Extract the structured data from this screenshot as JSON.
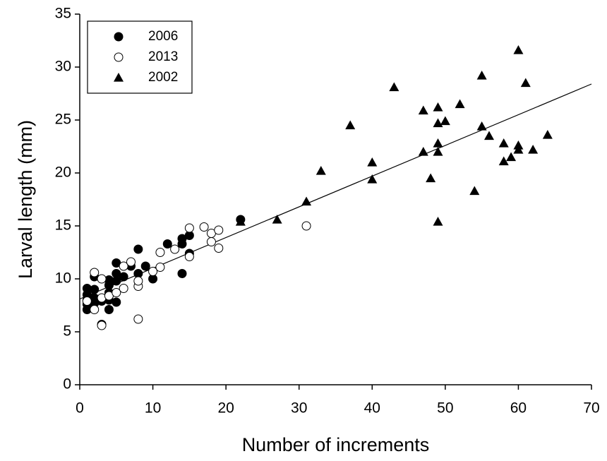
{
  "chart_data": {
    "type": "scatter",
    "x_label": "Number of increments",
    "y_label": "Larval length (mm)",
    "xlim": [
      0,
      70
    ],
    "ylim": [
      0,
      35
    ],
    "xticks": [
      0,
      10,
      20,
      30,
      40,
      50,
      60,
      70
    ],
    "yticks": [
      0,
      5,
      10,
      15,
      20,
      25,
      30,
      35
    ],
    "legend_position": "upper-left",
    "series": [
      {
        "name": "2006",
        "marker": "filled-circle",
        "color": "#000000",
        "x": [
          1,
          1,
          1,
          1,
          1,
          2,
          2,
          2,
          2,
          3,
          3,
          4,
          4,
          4,
          4,
          4,
          5,
          5,
          5,
          5,
          6,
          7,
          8,
          8,
          9,
          10,
          12,
          14,
          14,
          14,
          15,
          15,
          22
        ],
        "values": [
          7.1,
          7.6,
          8.0,
          8.5,
          9.1,
          7.7,
          8.2,
          9.0,
          10.2,
          5.7,
          7.9,
          7.1,
          8.0,
          8.7,
          9.4,
          9.9,
          7.8,
          9.8,
          10.5,
          11.5,
          10.2,
          11.2,
          10.5,
          12.8,
          11.2,
          10.0,
          13.3,
          10.5,
          13.3,
          13.8,
          12.4,
          14.1,
          15.6
        ]
      },
      {
        "name": "2013",
        "marker": "open-circle",
        "color": "#000000",
        "x": [
          1,
          2,
          2,
          3,
          3,
          3,
          4,
          5,
          6,
          6,
          7,
          8,
          8,
          8,
          10,
          11,
          11,
          13,
          15,
          15,
          17,
          18,
          18,
          19,
          19,
          31
        ],
        "values": [
          7.9,
          7.1,
          10.6,
          5.6,
          8.2,
          10.0,
          8.4,
          8.7,
          9.1,
          11.2,
          11.6,
          6.2,
          9.3,
          9.8,
          10.7,
          11.1,
          12.5,
          12.8,
          12.1,
          14.8,
          14.9,
          13.5,
          14.3,
          12.9,
          14.6,
          15.0
        ]
      },
      {
        "name": "2002",
        "marker": "triangle",
        "color": "#000000",
        "x": [
          22,
          27,
          31,
          33,
          37,
          40,
          40,
          43,
          47,
          47,
          48,
          49,
          49,
          49,
          49,
          49,
          50,
          52,
          54,
          55,
          55,
          56,
          58,
          58,
          59,
          60,
          60,
          60,
          61,
          62,
          64
        ],
        "values": [
          15.4,
          15.6,
          17.3,
          20.2,
          24.5,
          21.0,
          19.4,
          28.1,
          25.9,
          22.0,
          19.5,
          26.2,
          24.7,
          22.8,
          22.0,
          15.4,
          24.9,
          26.5,
          18.3,
          29.2,
          24.4,
          23.5,
          22.8,
          21.1,
          21.5,
          31.6,
          22.6,
          22.2,
          28.5,
          22.2,
          23.6
        ]
      }
    ],
    "trendline": {
      "x": [
        0,
        70
      ],
      "values": [
        8.1,
        28.4
      ]
    }
  }
}
